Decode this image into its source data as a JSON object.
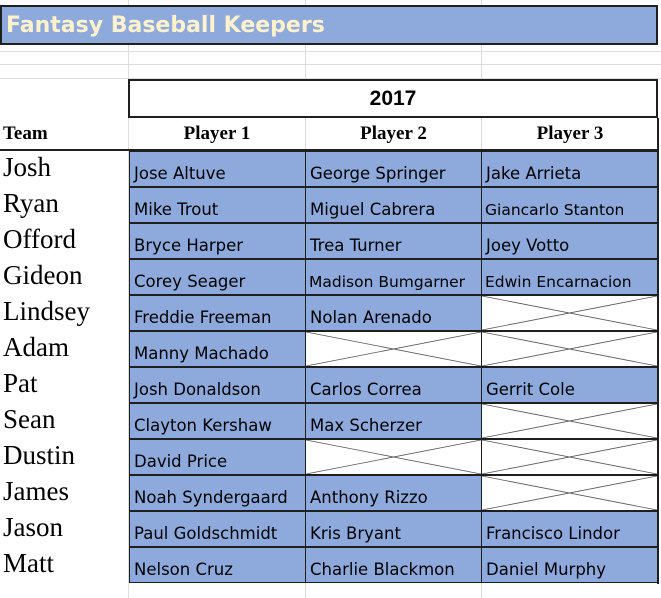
{
  "title": "Fantasy Baseball Keepers",
  "year": "2017",
  "headers": {
    "team": "Team",
    "player1": "Player 1",
    "player2": "Player 2",
    "player3": "Player 3"
  },
  "colors": {
    "fill": "#8ea9db",
    "title_text": "#fff2cc"
  },
  "rows": [
    {
      "team": "Josh",
      "players": [
        "Jose Altuve",
        "George Springer",
        "Jake Arrieta"
      ]
    },
    {
      "team": "Ryan",
      "players": [
        "Mike Trout",
        "Miguel Cabrera",
        "Giancarlo Stanton"
      ]
    },
    {
      "team": "Offord",
      "players": [
        "Bryce Harper",
        "Trea Turner",
        "Joey Votto"
      ]
    },
    {
      "team": "Gideon",
      "players": [
        "Corey Seager",
        "Madison Bumgarner",
        "Edwin Encarnacion"
      ]
    },
    {
      "team": "Lindsey",
      "players": [
        "Freddie Freeman",
        "Nolan Arenado",
        ""
      ]
    },
    {
      "team": "Adam",
      "players": [
        "Manny Machado",
        "",
        ""
      ]
    },
    {
      "team": "Pat",
      "players": [
        "Josh Donaldson",
        "Carlos Correa",
        "Gerrit Cole"
      ]
    },
    {
      "team": "Sean",
      "players": [
        "Clayton Kershaw",
        "Max Scherzer",
        ""
      ]
    },
    {
      "team": "Dustin",
      "players": [
        "David Price",
        "",
        ""
      ]
    },
    {
      "team": "James",
      "players": [
        "Noah Syndergaard",
        "Anthony Rizzo",
        ""
      ]
    },
    {
      "team": "Jason",
      "players": [
        "Paul Goldschmidt",
        "Kris Bryant",
        "Francisco Lindor"
      ]
    },
    {
      "team": "Matt",
      "players": [
        "Nelson Cruz",
        "Charlie Blackmon",
        "Daniel Murphy"
      ]
    }
  ]
}
